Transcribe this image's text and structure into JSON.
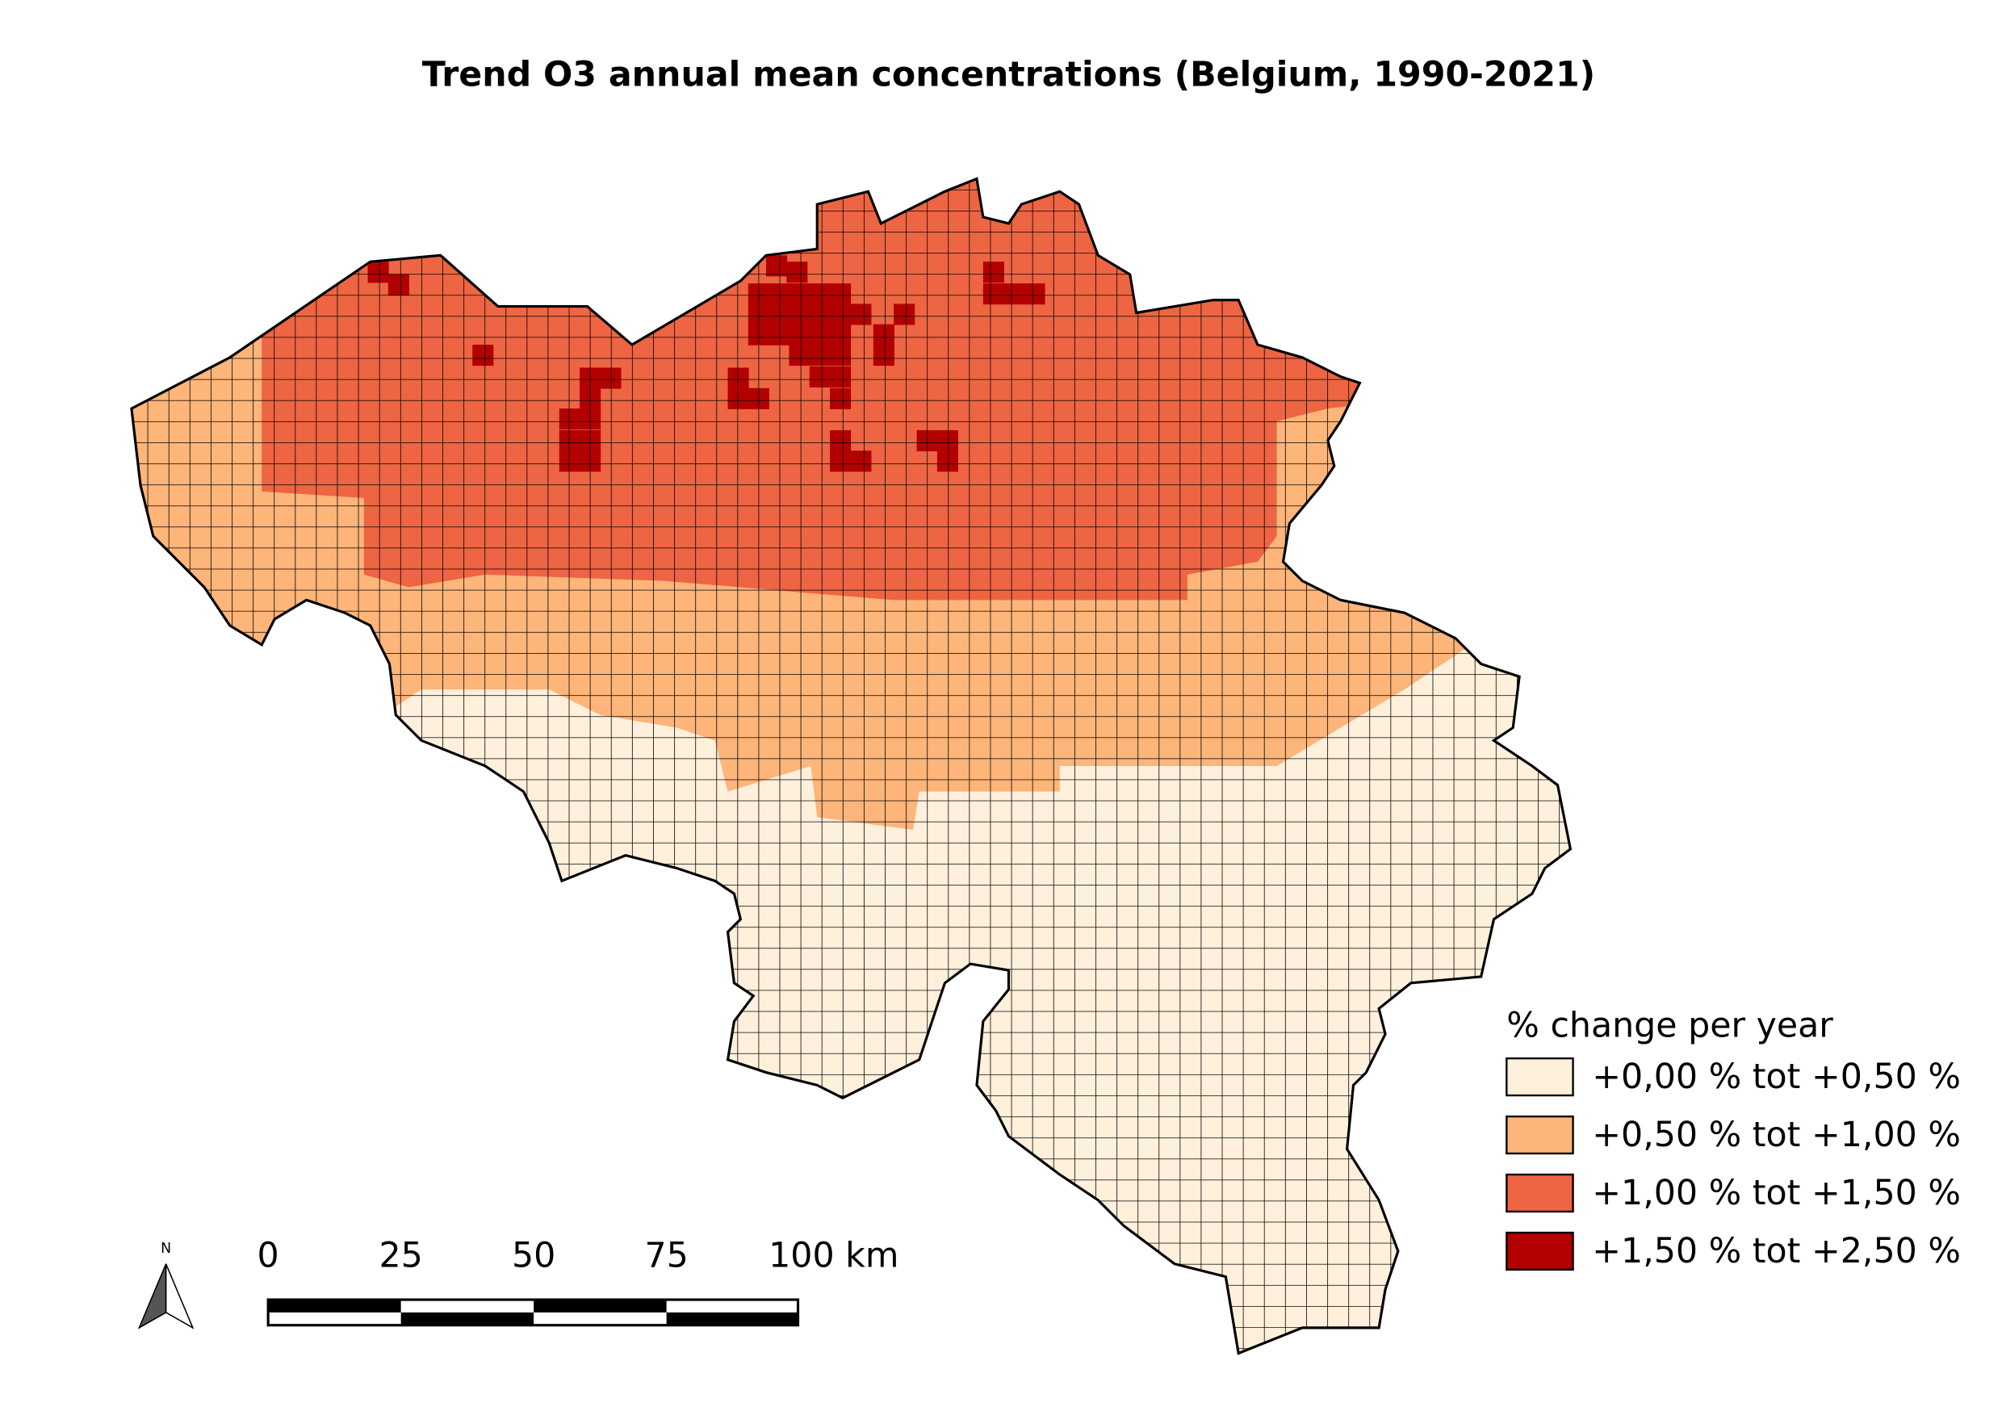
{
  "title": "Trend O3 annual mean concentrations (Belgium, 1990-2021)",
  "legend": {
    "title": "% change per year",
    "items": [
      {
        "label": "+0,00 % tot +0,50 %",
        "color": "#fff0dc"
      },
      {
        "label": "+0,50 % tot +1,00 %",
        "color": "#fdb57a"
      },
      {
        "label": "+1,00 % tot +1,50 %",
        "color": "#ed6543"
      },
      {
        "label": "+1,50 % tot +2,50 %",
        "color": "#b30000"
      }
    ]
  },
  "scale_bar": {
    "labels": [
      "0",
      "25",
      "50",
      "75",
      "100 km"
    ]
  },
  "north_arrow": "N"
}
